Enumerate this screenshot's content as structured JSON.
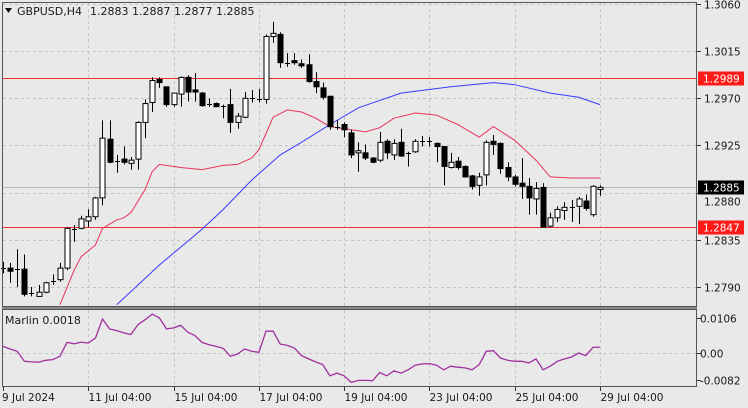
{
  "header": {
    "menu_icon": "triangle-down-icon",
    "symbol": "GBPUSD,H4",
    "ohlc": "1.2883 1.2887 1.2877 1.2885"
  },
  "indicator_label": "Marlin 0.0018",
  "colors": {
    "background": "#e9e9e9",
    "candle_up": "#ffffff",
    "candle_down": "#000000",
    "level_line": "#f03030",
    "ma_red": "#e8335a",
    "ma_blue": "#3a3aff",
    "marlin": "#a030a0",
    "price_tag_current": "#000000",
    "price_tag_level": "#ff1a1a"
  },
  "chart_data": [
    {
      "type": "candlestick",
      "symbol": "GBPUSD",
      "timeframe": "H4",
      "ylim": [
        1.2768,
        1.3064
      ],
      "y_ticks": [
        "1.3060",
        "1.3015",
        "1.2970",
        "1.2925",
        "1.2880",
        "1.2835",
        "1.2790"
      ],
      "x_ticks": [
        {
          "index": 0,
          "label": "9 Jul 2024"
        },
        {
          "index": 12,
          "label": "11 Jul 04:00"
        },
        {
          "index": 24,
          "label": "15 Jul 04:00"
        },
        {
          "index": 36,
          "label": "17 Jul 04:00"
        },
        {
          "index": 48,
          "label": "19 Jul 04:00"
        },
        {
          "index": 60,
          "label": "23 Jul 04:00"
        },
        {
          "index": 72,
          "label": "25 Jul 04:00"
        },
        {
          "index": 84,
          "label": "29 Jul 04:00"
        }
      ],
      "grid": true,
      "candles_ohlc": [
        [
          1.2808,
          1.2814,
          1.2803,
          1.2808
        ],
        [
          1.2808,
          1.2813,
          1.2794,
          1.2805
        ],
        [
          1.2807,
          1.2826,
          1.279,
          1.2807
        ],
        [
          1.2807,
          1.2821,
          1.2781,
          1.2783
        ],
        [
          1.2784,
          1.279,
          1.2781,
          1.2784
        ],
        [
          1.2781,
          1.2792,
          1.2781,
          1.2785
        ],
        [
          1.2785,
          1.2795,
          1.2784,
          1.2794
        ],
        [
          1.2796,
          1.2802,
          1.2792,
          1.2796
        ],
        [
          1.2797,
          1.2813,
          1.2795,
          1.2808
        ],
        [
          1.2808,
          1.2847,
          1.2806,
          1.2846
        ],
        [
          1.2845,
          1.2849,
          1.2833,
          1.2845
        ],
        [
          1.2846,
          1.2858,
          1.2845,
          1.2855
        ],
        [
          1.2853,
          1.2864,
          1.2847,
          1.2857
        ],
        [
          1.2857,
          1.2876,
          1.2854,
          1.2875
        ],
        [
          1.2875,
          1.2949,
          1.2868,
          1.2932
        ],
        [
          1.2931,
          1.2949,
          1.2908,
          1.2909
        ],
        [
          1.291,
          1.2916,
          1.2899,
          1.291
        ],
        [
          1.2912,
          1.2924,
          1.2907,
          1.2909
        ],
        [
          1.2908,
          1.2914,
          1.2902,
          1.2911
        ],
        [
          1.2912,
          1.2948,
          1.2902,
          1.2947
        ],
        [
          1.2947,
          1.2969,
          1.2932,
          1.2965
        ],
        [
          1.2966,
          1.299,
          1.2957,
          1.2987
        ],
        [
          1.2988,
          1.299,
          1.298,
          1.2985
        ],
        [
          1.2981,
          1.2981,
          1.2962,
          1.2964
        ],
        [
          1.2964,
          1.2975,
          1.2962,
          1.2975
        ],
        [
          1.2974,
          1.2991,
          1.2962,
          1.299
        ],
        [
          1.299,
          1.2992,
          1.2967,
          1.2976
        ],
        [
          1.2978,
          1.2994,
          1.2967,
          1.2976
        ],
        [
          1.2975,
          1.2976,
          1.2962,
          1.2963
        ],
        [
          1.2965,
          1.297,
          1.2962,
          1.2965
        ],
        [
          1.2965,
          1.2966,
          1.2962,
          1.2962
        ],
        [
          1.2963,
          1.2964,
          1.2951,
          1.2963
        ],
        [
          1.2964,
          1.2979,
          1.2937,
          1.2947
        ],
        [
          1.2947,
          1.2956,
          1.2941,
          1.2953
        ],
        [
          1.2952,
          1.2976,
          1.2951,
          1.297
        ],
        [
          1.297,
          1.2978,
          1.2966,
          1.297
        ],
        [
          1.2969,
          1.2979,
          1.2966,
          1.2969
        ],
        [
          1.2969,
          1.3031,
          1.2965,
          1.3029
        ],
        [
          1.3029,
          1.3043,
          1.3023,
          1.3032
        ],
        [
          1.3031,
          1.3033,
          1.2999,
          1.3004
        ],
        [
          1.3004,
          1.3013,
          1.3,
          1.3004
        ],
        [
          1.3006,
          1.3013,
          1.3002,
          1.3004
        ],
        [
          1.3003,
          1.3007,
          1.2999,
          1.3001
        ],
        [
          1.3002,
          1.3012,
          1.2985,
          1.2986
        ],
        [
          1.2986,
          1.2995,
          1.2975,
          1.2981
        ],
        [
          1.298,
          1.2985,
          1.2969,
          1.2971
        ],
        [
          1.2972,
          1.2972,
          1.294,
          1.2943
        ],
        [
          1.2943,
          1.2949,
          1.294,
          1.2943
        ],
        [
          1.2945,
          1.2947,
          1.2933,
          1.294
        ],
        [
          1.2937,
          1.294,
          1.2913,
          1.2916
        ],
        [
          1.2918,
          1.2928,
          1.29,
          1.292
        ],
        [
          1.2918,
          1.2926,
          1.2911,
          1.2913
        ],
        [
          1.2913,
          1.2914,
          1.2908,
          1.2909
        ],
        [
          1.2911,
          1.2938,
          1.2909,
          1.2928
        ],
        [
          1.2929,
          1.2931,
          1.2912,
          1.2918
        ],
        [
          1.2916,
          1.2931,
          1.2911,
          1.2927
        ],
        [
          1.2928,
          1.2941,
          1.2914,
          1.2915
        ],
        [
          1.2918,
          1.2919,
          1.2905,
          1.2918
        ],
        [
          1.2919,
          1.2931,
          1.2918,
          1.2929
        ],
        [
          1.2929,
          1.2934,
          1.2924,
          1.2929
        ],
        [
          1.2929,
          1.2933,
          1.2924,
          1.2928
        ],
        [
          1.2927,
          1.2928,
          1.2909,
          1.2924
        ],
        [
          1.2924,
          1.2924,
          1.2887,
          1.2905
        ],
        [
          1.2904,
          1.2918,
          1.2903,
          1.2909
        ],
        [
          1.291,
          1.2914,
          1.2902,
          1.2904
        ],
        [
          1.2905,
          1.2906,
          1.2895,
          1.2895
        ],
        [
          1.2896,
          1.2897,
          1.2883,
          1.2886
        ],
        [
          1.2887,
          1.2899,
          1.2877,
          1.2895
        ],
        [
          1.2897,
          1.293,
          1.2887,
          1.2928
        ],
        [
          1.2929,
          1.2935,
          1.2916,
          1.2926
        ],
        [
          1.2927,
          1.2928,
          1.2898,
          1.2903
        ],
        [
          1.2904,
          1.2909,
          1.2891,
          1.2895
        ],
        [
          1.2895,
          1.2897,
          1.2886,
          1.2888
        ],
        [
          1.2889,
          1.2913,
          1.2874,
          1.2886
        ],
        [
          1.2886,
          1.2894,
          1.2859,
          1.2875
        ],
        [
          1.2874,
          1.289,
          1.2859,
          1.2884
        ],
        [
          1.2885,
          1.2889,
          1.2847,
          1.2847
        ],
        [
          1.2848,
          1.2861,
          1.2847,
          1.2856
        ],
        [
          1.2856,
          1.2867,
          1.2852,
          1.2864
        ],
        [
          1.2863,
          1.2871,
          1.2854,
          1.2866
        ],
        [
          1.2866,
          1.2873,
          1.2852,
          1.2866
        ],
        [
          1.2867,
          1.2876,
          1.285,
          1.2874
        ],
        [
          1.2872,
          1.2878,
          1.2863,
          1.2865
        ],
        [
          1.2859,
          1.2887,
          1.2857,
          1.2886
        ],
        [
          1.2883,
          1.2887,
          1.2877,
          1.2885
        ]
      ],
      "ma_red": [
        [
          8,
          1.2773
        ],
        [
          10,
          1.2806
        ],
        [
          11,
          1.2819
        ],
        [
          13,
          1.283
        ],
        [
          14,
          1.2846
        ],
        [
          16,
          1.2854
        ],
        [
          17,
          1.2856
        ],
        [
          18,
          1.2861
        ],
        [
          20,
          1.2883
        ],
        [
          21,
          1.29
        ],
        [
          22,
          1.2907
        ],
        [
          25,
          1.2904
        ],
        [
          28,
          1.2902
        ],
        [
          31,
          1.2906
        ],
        [
          33,
          1.2907
        ],
        [
          35,
          1.2913
        ],
        [
          36,
          1.2921
        ],
        [
          38,
          1.2952
        ],
        [
          40,
          1.2959
        ],
        [
          42,
          1.2957
        ],
        [
          44,
          1.2951
        ],
        [
          46,
          1.2943
        ],
        [
          51,
          1.2938
        ],
        [
          53,
          1.2942
        ],
        [
          55,
          1.2951
        ],
        [
          58,
          1.2956
        ],
        [
          61,
          1.2954
        ],
        [
          64,
          1.2945
        ],
        [
          67,
          1.2933
        ],
        [
          69,
          1.2943
        ],
        [
          72,
          1.293
        ],
        [
          75,
          1.2911
        ],
        [
          77,
          1.2895
        ],
        [
          80,
          1.2894
        ],
        [
          84,
          1.2894
        ]
      ],
      "ma_blue": [
        [
          16,
          1.2773
        ],
        [
          22,
          1.2811
        ],
        [
          28,
          1.2845
        ],
        [
          31,
          1.2864
        ],
        [
          35,
          1.2892
        ],
        [
          39,
          1.2916
        ],
        [
          42,
          1.2928
        ],
        [
          46,
          1.2945
        ],
        [
          50,
          1.2961
        ],
        [
          56,
          1.2975
        ],
        [
          63,
          1.2981
        ],
        [
          69,
          1.2985
        ],
        [
          72,
          1.2983
        ],
        [
          77,
          1.2975
        ],
        [
          81,
          1.2971
        ],
        [
          84,
          1.2964
        ]
      ],
      "levels": [
        {
          "price": 1.2989,
          "label": "1.2989"
        },
        {
          "price": 1.2847,
          "label": "1.2847"
        }
      ],
      "current_price": {
        "price": 1.2885,
        "label": "1.2885"
      }
    },
    {
      "type": "line",
      "name": "Marlin",
      "ylim": [
        -0.0095,
        0.012
      ],
      "y_ticks": [
        "0.0106",
        "0.00",
        "-0.0082"
      ],
      "values": [
        0.002,
        0.0012,
        0.0005,
        -0.0025,
        -0.0027,
        -0.0028,
        -0.0022,
        -0.002,
        -0.001,
        0.0032,
        0.0028,
        0.0033,
        0.003,
        0.0045,
        0.0103,
        0.0073,
        0.0068,
        0.0061,
        0.0056,
        0.0086,
        0.0101,
        0.0118,
        0.0106,
        0.0073,
        0.0076,
        0.0084,
        0.0063,
        0.0053,
        0.0032,
        0.0025,
        0.002,
        0.0014,
        -0.001,
        -0.0003,
        0.0012,
        0.0005,
        0.0002,
        0.0066,
        0.0066,
        0.0027,
        0.0023,
        0.0015,
        -0.0008,
        -0.0018,
        -0.0027,
        -0.0035,
        -0.0069,
        -0.0061,
        -0.0069,
        -0.0089,
        -0.0083,
        -0.0083,
        -0.0084,
        -0.0059,
        -0.0069,
        -0.0054,
        -0.0061,
        -0.0051,
        -0.0037,
        -0.0033,
        -0.0032,
        -0.0037,
        -0.0051,
        -0.004,
        -0.0043,
        -0.0045,
        -0.0051,
        -0.0035,
        0.0005,
        0.0007,
        -0.0015,
        -0.0022,
        -0.0025,
        -0.0025,
        -0.003,
        -0.0018,
        -0.0051,
        -0.004,
        -0.0025,
        -0.0018,
        -0.0012,
        0.0,
        -0.0008,
        0.0017,
        0.0018
      ]
    }
  ]
}
